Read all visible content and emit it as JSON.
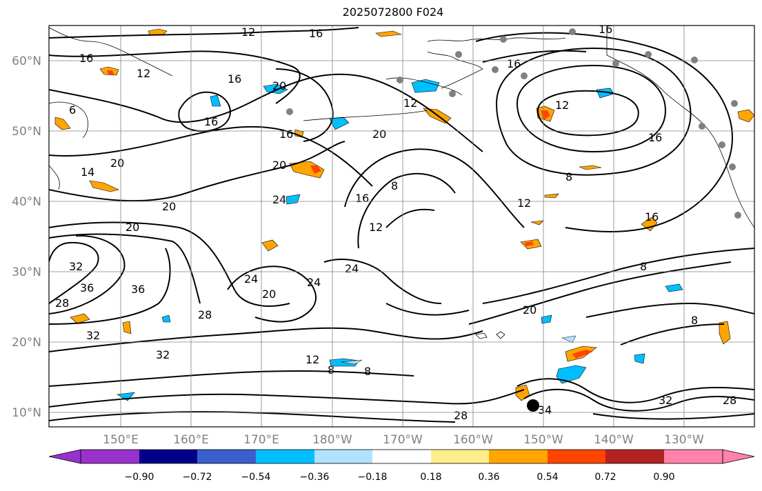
{
  "title": "2025072800 F024",
  "map": {
    "lat_labels": [
      "60°N",
      "50°N",
      "40°N",
      "30°N",
      "20°N",
      "10°N"
    ],
    "lon_labels": [
      "150°E",
      "160°E",
      "170°E",
      "180°W",
      "170°W",
      "160°W",
      "150°W",
      "140°W",
      "130°W"
    ],
    "contour_labels": [
      "16",
      "16",
      "12",
      "16",
      "6",
      "12",
      "16",
      "20",
      "16",
      "16",
      "12",
      "20",
      "16",
      "20",
      "20",
      "24",
      "20",
      "16",
      "12",
      "8",
      "12",
      "16",
      "8",
      "12",
      "16",
      "8",
      "32",
      "36",
      "28",
      "36",
      "32",
      "20",
      "24",
      "20",
      "24",
      "24",
      "20",
      "12",
      "8",
      "28",
      "32",
      "8",
      "8",
      "28",
      "34",
      "32",
      "28",
      "14"
    ]
  },
  "colorbar": {
    "ticks": [
      "−0.90",
      "−0.72",
      "−0.54",
      "−0.36",
      "−0.18",
      "0.18",
      "0.36",
      "0.54",
      "0.72",
      "0.90"
    ],
    "colors": [
      "#9932cc",
      "#00008b",
      "#3a5fcd",
      "#00bfff",
      "#b0e2ff",
      "#ffffff",
      "#ffec8b",
      "#ffa500",
      "#ff4500",
      "#b22222",
      "#ff82ab"
    ]
  },
  "colors": {
    "contour": "#000000",
    "coast": "#000000",
    "grid": "#808080",
    "station": "#808080",
    "storm_marker": "#000000"
  }
}
